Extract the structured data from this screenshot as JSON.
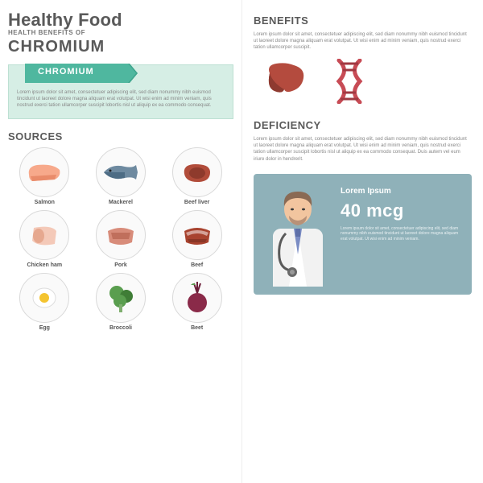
{
  "colors": {
    "text_primary": "#5a5a5a",
    "text_muted": "#888888",
    "mint_bg": "#d6eee5",
    "mint_border": "#bde0d3",
    "teal_pill": "#4fb79f",
    "teal_pill_dark": "#3fa58d",
    "doctor_card_bg": "#8fb1b9",
    "white": "#ffffff",
    "circle_border": "#d9d9d9"
  },
  "typography": {
    "main_title_size": 22,
    "sec_head_size": 13,
    "body_size": 6,
    "food_label_size": 7
  },
  "left": {
    "main_title": "Healthy Food",
    "sub_title": "HEALTH BENEFITS OF",
    "mineral": "CHROMIUM",
    "pill_label": "CHROMIUM",
    "intro_body": "Lorem ipsum dolor sit amet, consectetuer adipiscing elit, sed diam nonummy nibh euismod tincidunt ut laoreet dolore magna aliquam erat volutpat. Ut wisi enim ad minim veniam, quis nostrud exerci tation ullamcorper suscipit lobortis nisl ut aliquip ex ea commodo consequat.",
    "sources_head": "SOURCES",
    "foods": [
      {
        "label": "Salmon",
        "fill": "#f7a98b",
        "accent": "#e98b6a"
      },
      {
        "label": "Mackerel",
        "fill": "#6e8aa0",
        "accent": "#4d6c84"
      },
      {
        "label": "Beef liver",
        "fill": "#b14c3a",
        "accent": "#8e3a2c"
      },
      {
        "label": "Chicken ham",
        "fill": "#f4c9b8",
        "accent": "#e6a88f"
      },
      {
        "label": "Pork",
        "fill": "#d88c7a",
        "accent": "#c06f5c"
      },
      {
        "label": "Beef",
        "fill": "#a8432f",
        "accent": "#8a3626"
      },
      {
        "label": "Egg",
        "fill": "#ffffff",
        "accent": "#f4c430"
      },
      {
        "label": "Broccoli",
        "fill": "#5a9e4f",
        "accent": "#3f7d36"
      },
      {
        "label": "Beet",
        "fill": "#8a2a49",
        "accent": "#6b1f38"
      }
    ]
  },
  "right": {
    "benefits_head": "BENEFITS",
    "benefits_body": "Lorem ipsum dolor sit amet, consectetuer adipiscing elit, sed diam nonummy nibh euismod tincidunt ut laoreet dolore magna aliquam erat volutpat. Ut wisi enim ad minim veniam, quis nostrud exerci tation ullamcorper suscipit.",
    "benefit_icons": [
      {
        "name": "liver",
        "color": "#b44b3e",
        "shade": "#8e3a30"
      },
      {
        "name": "dna",
        "color": "#c74b55",
        "shade": "#a03942"
      }
    ],
    "deficiency_head": "DEFICIENCY",
    "deficiency_body": "Lorem ipsum dolor sit amet, consectetuer adipiscing elit, sed diam nonummy nibh euismod tincidunt ut laoreet dolore magna aliquam erat volutpat. Ut wisi enim ad minim veniam, quis nostrud exerci tation ullamcorper suscipit lobortis nisl ut aliquip ex ea commodo consequat. Duis autem vel eum iriure dolor in hendrerit.",
    "doctor": {
      "title": "Lorem Ipsum",
      "value": "40 mcg",
      "body": "Lorem ipsum dolor sit amet, consectetuer adipiscing elit, sed diam nonummy nibh euismod tincidunt ut laoreet dolore magna aliquam erat volutpat. Ut wisi enim ad minim veniam.",
      "coat": "#ffffff",
      "skin": "#f2c59f",
      "hair": "#8a6a54",
      "beard": "#b89177",
      "tie": "#7a8cc4",
      "steth": "#5a5a5a"
    }
  }
}
